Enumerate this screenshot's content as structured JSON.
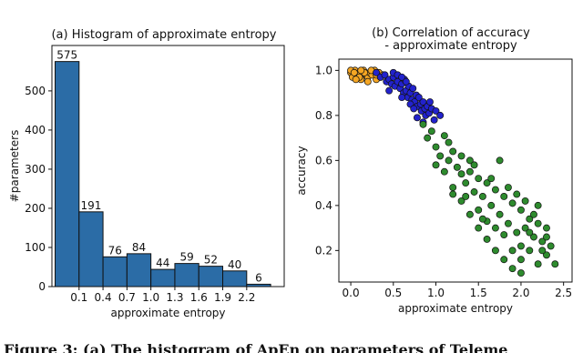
{
  "chart_data": [
    {
      "type": "histogram",
      "title": "(a) Histogram of approximate entropy",
      "x_label": "approximate entropy",
      "y_label": "#parameters",
      "bins": [
        -0.2,
        0.1,
        0.4,
        0.7,
        1.0,
        1.3,
        1.6,
        1.9,
        2.2,
        2.5
      ],
      "values": [
        575,
        191,
        76,
        84,
        44,
        59,
        52,
        40,
        6
      ],
      "show_values": true,
      "color": "#2b6ca6",
      "edgecolor": "#111111",
      "xlim": [
        -0.24,
        2.67
      ],
      "ylim": [
        0,
        616
      ],
      "xticks": [
        0.1,
        0.4,
        0.7,
        {
          "value": 1.0,
          "label": "1.0"
        },
        1.3,
        1.6,
        1.9,
        2.2
      ],
      "yticks": [
        0,
        100,
        200,
        300,
        400,
        500
      ],
      "grid": false
    },
    {
      "type": "scatter",
      "title": [
        "(b) Correlation of accuracy",
        "- approximate entropy"
      ],
      "x_label": "approximate entropy",
      "y_label": "accuracy",
      "xlim": [
        -0.14,
        2.6
      ],
      "ylim": [
        0.06,
        1.05
      ],
      "xticks": [
        {
          "value": 0,
          "label": "0.0"
        },
        0.5,
        {
          "value": 1,
          "label": "1.0"
        },
        1.5,
        {
          "value": 2,
          "label": "2.0"
        },
        2.5
      ],
      "yticks": [
        0.2,
        0.4,
        0.6,
        0.8,
        {
          "value": 1,
          "label": "1.0"
        }
      ],
      "grid": false,
      "series": [
        {
          "color": "#f5a623",
          "x": [
            0.0,
            0.02,
            0.05,
            0.08,
            0.1,
            0.12,
            0.15,
            0.18,
            0.2,
            0.22,
            0.25,
            0.28,
            0.3,
            0.33,
            0.35,
            0.38,
            0.0,
            0.04,
            0.1,
            0.16,
            0.24,
            0.3,
            0.12,
            0.06,
            0.2
          ],
          "values": [
            0.99,
            0.97,
            1.0,
            0.98,
            0.99,
            0.96,
            1.0,
            0.98,
            0.97,
            0.99,
            0.98,
            1.0,
            0.96,
            0.99,
            0.97,
            0.98,
            1.0,
            0.99,
            0.97,
            0.99,
            1.0,
            0.98,
            1.0,
            0.96,
            0.95
          ]
        },
        {
          "color": "#2222cc",
          "x": [
            0.3,
            0.35,
            0.4,
            0.42,
            0.45,
            0.48,
            0.5,
            0.52,
            0.55,
            0.58,
            0.6,
            0.62,
            0.63,
            0.65,
            0.67,
            0.68,
            0.7,
            0.72,
            0.73,
            0.75,
            0.77,
            0.78,
            0.8,
            0.82,
            0.83,
            0.85,
            0.87,
            0.88,
            0.9,
            0.92,
            0.95,
            0.98,
            1.0,
            1.05,
            0.5,
            0.55,
            0.6,
            0.65,
            0.7,
            0.74,
            0.78,
            0.6,
            0.45,
            0.85,
            0.93
          ],
          "values": [
            0.99,
            0.97,
            0.98,
            0.95,
            0.96,
            0.94,
            0.97,
            0.93,
            0.95,
            0.92,
            0.94,
            0.9,
            0.96,
            0.91,
            0.88,
            0.93,
            0.9,
            0.87,
            0.92,
            0.86,
            0.89,
            0.84,
            0.88,
            0.85,
            0.82,
            0.86,
            0.83,
            0.8,
            0.84,
            0.81,
            0.83,
            0.78,
            0.82,
            0.8,
            0.99,
            0.98,
            0.97,
            0.95,
            0.85,
            0.83,
            0.79,
            0.88,
            0.91,
            0.77,
            0.86
          ]
        },
        {
          "color": "#2e8b2e",
          "x": [
            0.85,
            0.9,
            0.95,
            1.0,
            1.05,
            1.1,
            1.1,
            1.15,
            1.2,
            1.2,
            1.25,
            1.3,
            1.3,
            1.35,
            1.4,
            1.4,
            1.45,
            1.5,
            1.5,
            1.55,
            1.6,
            1.6,
            1.65,
            1.7,
            1.7,
            1.75,
            1.8,
            1.8,
            1.85,
            1.9,
            1.9,
            1.95,
            2.0,
            2.0,
            2.05,
            2.1,
            2.1,
            2.15,
            2.2,
            2.2,
            2.25,
            2.3,
            2.3,
            2.35,
            2.4,
            1.0,
            1.2,
            1.4,
            1.6,
            1.8,
            2.0,
            2.2,
            1.3,
            1.5,
            1.7,
            1.9,
            2.1,
            2.3,
            1.45,
            1.65,
            1.85,
            2.05,
            2.25,
            1.15,
            1.35,
            1.55,
            1.75,
            1.95,
            2.15,
            2.0
          ],
          "values": [
            0.76,
            0.7,
            0.73,
            0.66,
            0.62,
            0.71,
            0.55,
            0.6,
            0.64,
            0.48,
            0.57,
            0.62,
            0.42,
            0.5,
            0.55,
            0.36,
            0.46,
            0.52,
            0.3,
            0.44,
            0.5,
            0.25,
            0.4,
            0.47,
            0.2,
            0.36,
            0.44,
            0.16,
            0.32,
            0.41,
            0.12,
            0.28,
            0.38,
            0.1,
            0.3,
            0.34,
            0.2,
            0.26,
            0.32,
            0.14,
            0.24,
            0.3,
            0.18,
            0.22,
            0.14,
            0.58,
            0.45,
            0.6,
            0.33,
            0.27,
            0.22,
            0.4,
            0.54,
            0.38,
            0.3,
            0.2,
            0.28,
            0.26,
            0.58,
            0.52,
            0.48,
            0.42,
            0.2,
            0.68,
            0.44,
            0.34,
            0.6,
            0.45,
            0.36,
            0.16
          ]
        }
      ]
    }
  ],
  "caption": "Figure 3: (a) The histogram of ApEn on parameters of Teleme"
}
